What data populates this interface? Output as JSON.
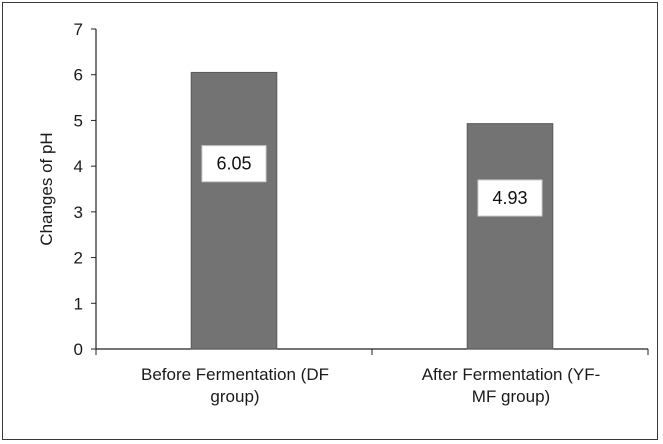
{
  "chart_data": {
    "type": "bar",
    "categories": [
      [
        "Before Fermentation (DF",
        "group)"
      ],
      [
        "After Fermentation (YF-",
        "MF group)"
      ]
    ],
    "values": [
      6.05,
      4.93
    ],
    "data_labels": [
      "6.05",
      "4.93"
    ],
    "title": "",
    "xlabel": "",
    "ylabel": "Changes of pH",
    "ylim": [
      0,
      7
    ],
    "yticks": [
      0,
      1,
      2,
      3,
      4,
      5,
      6,
      7
    ],
    "grid": false,
    "legend": "none",
    "bar_color": "#737373",
    "bar_edge_color": "#5a5a5a",
    "label_box_color": "#ffffff"
  }
}
